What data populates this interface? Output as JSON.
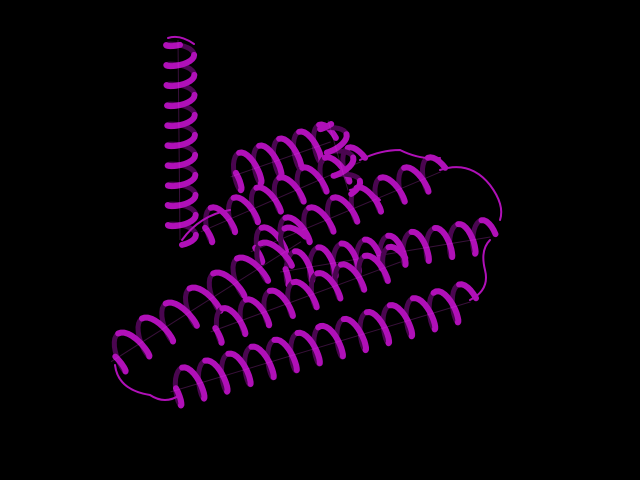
{
  "scene": {
    "background_color": "#000000",
    "ribbon_color": "#b010b8",
    "ribbon_highlight": "#e040e8",
    "ribbon_shadow": "#4a0650",
    "representation": "cartoon"
  }
}
